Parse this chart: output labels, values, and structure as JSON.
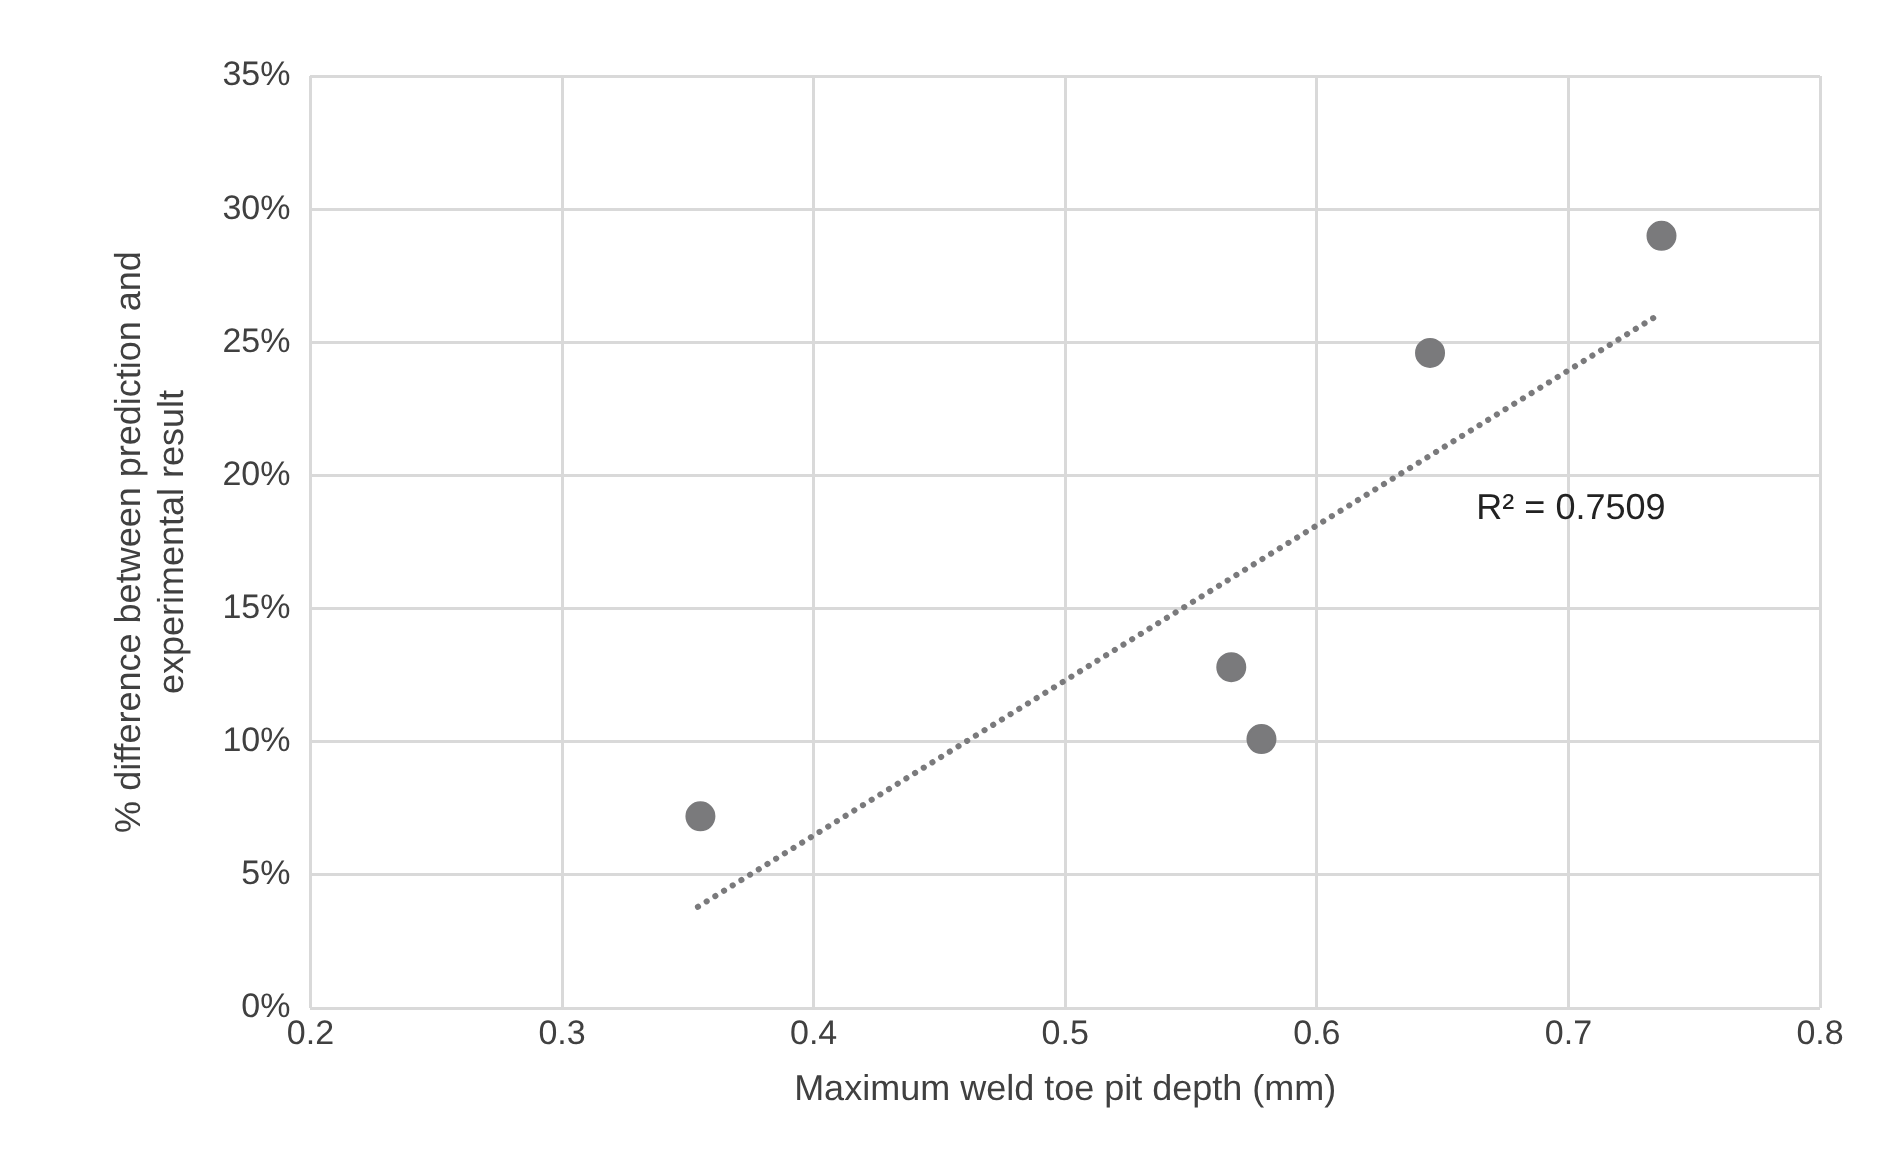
{
  "chart_data": {
    "type": "scatter",
    "xlabel": "Maximum weld toe pit depth (mm)",
    "ylabel": "% difference between prediction and experimental result",
    "xlim": [
      0.2,
      0.8
    ],
    "xticks": [
      0.2,
      0.3,
      0.4,
      0.5,
      0.6,
      0.7,
      0.8
    ],
    "ylim": [
      0,
      35
    ],
    "yticks": [
      {
        "value": 0,
        "label": "0%"
      },
      {
        "value": 5,
        "label": "5%"
      },
      {
        "value": 10,
        "label": "10%"
      },
      {
        "value": 15,
        "label": "15%"
      },
      {
        "value": 20,
        "label": "20%"
      },
      {
        "value": 25,
        "label": "25%"
      },
      {
        "value": 30,
        "label": "30%"
      },
      {
        "value": 35,
        "label": "35%"
      }
    ],
    "grid": true,
    "legend": false,
    "series": [
      {
        "type": "scatter",
        "color": "#7a7a7c",
        "marker": "circle",
        "x": [
          0.355,
          0.566,
          0.578,
          0.645,
          0.737
        ],
        "values": [
          7.2,
          12.8,
          10.1,
          24.6,
          29.0
        ]
      },
      {
        "type": "line",
        "color": "#7a7a7c",
        "marker": "none",
        "line_style": "dotted",
        "x": [
          0.354,
          0.737
        ],
        "values": [
          3.8,
          26.1
        ]
      }
    ],
    "annotations": [
      "R² = 0.7509"
    ]
  }
}
